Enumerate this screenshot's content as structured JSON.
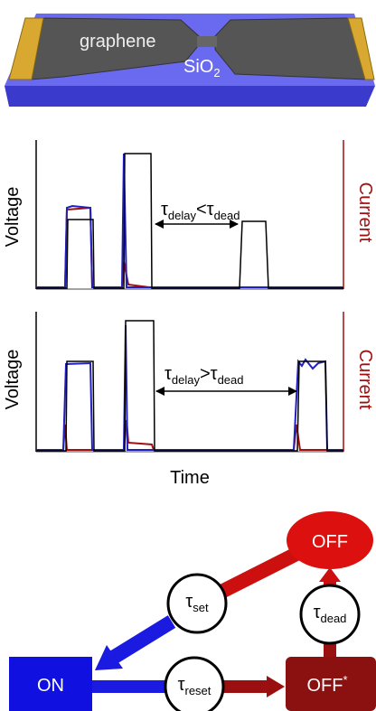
{
  "device": {
    "material": "graphene",
    "substrate": {
      "base": "SiO",
      "sub": "2"
    }
  },
  "panels": [
    {
      "y_label": "Voltage",
      "y2_label": "Current",
      "annotation": {
        "tau1": {
          "base": "τ",
          "sub": "delay"
        },
        "relation": "<",
        "tau2": {
          "base": "τ",
          "sub": "dead"
        }
      }
    },
    {
      "y_label": "Voltage",
      "y2_label": "Current",
      "annotation": {
        "tau1": {
          "base": "τ",
          "sub": "delay"
        },
        "relation": ">",
        "tau2": {
          "base": "τ",
          "sub": "dead"
        }
      }
    }
  ],
  "x_label": "Time",
  "diagram": {
    "states": {
      "off": "OFF",
      "on": "ON",
      "off_star": {
        "base": "OFF",
        "sup": "*"
      }
    },
    "transitions": {
      "set": {
        "base": "τ",
        "sub": "set"
      },
      "dead": {
        "base": "τ",
        "sub": "dead"
      },
      "reset": {
        "base": "τ",
        "sub": "reset"
      }
    }
  }
}
